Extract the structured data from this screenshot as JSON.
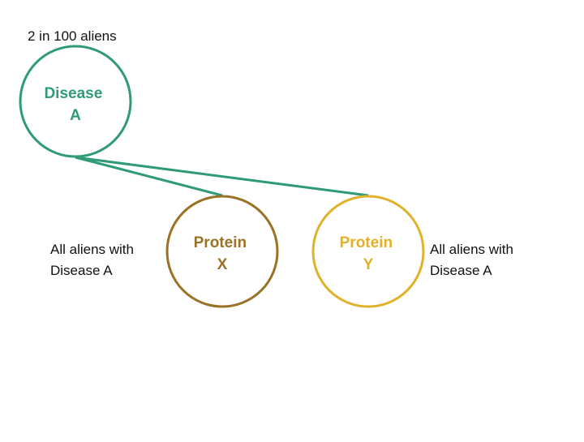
{
  "diagram": {
    "top_note": "2 in 100 aliens",
    "nodes": {
      "disease_a": {
        "line1": "Disease",
        "line2": "A",
        "color": "#2f9a78"
      },
      "protein_x": {
        "line1": "Protein",
        "line2": "X",
        "color": "#9a7226"
      },
      "protein_y": {
        "line1": "Protein",
        "line2": "Y",
        "color": "#e0b12a"
      }
    },
    "connector_color": "#2f9a78",
    "note_left": {
      "line1": "All aliens with",
      "line2": "Disease A"
    },
    "note_right": {
      "line1": "All aliens with",
      "line2": "Disease A"
    }
  }
}
